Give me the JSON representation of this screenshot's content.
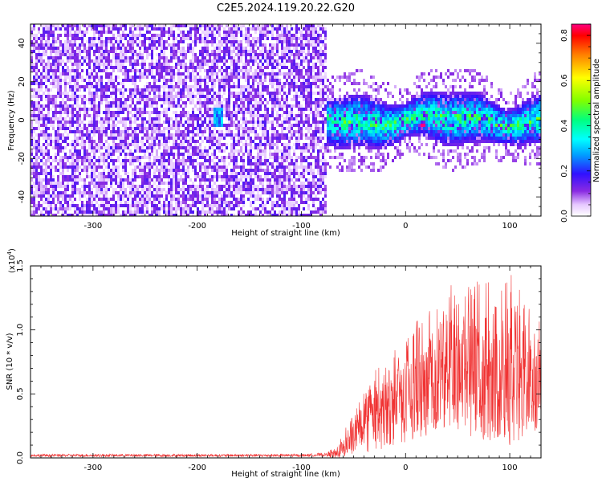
{
  "title": "C2E5.2024.119.20.22.G20",
  "chart_data": [
    {
      "type": "heatmap",
      "xlabel": "Height of straight line (km)",
      "ylabel": "Frequency (Hz)",
      "xlim": [
        -360,
        130
      ],
      "ylim": [
        -50,
        50
      ],
      "xticks": [
        -300,
        -200,
        -100,
        0,
        100
      ],
      "yticks": [
        -40,
        -20,
        0,
        20,
        40
      ],
      "colorbar": {
        "label": "Normalized spectral amplitude",
        "range": [
          0,
          0.85
        ],
        "ticks": [
          0.0,
          0.2,
          0.4,
          0.6,
          0.8
        ],
        "tick_labels": [
          "0.0",
          "0.2",
          "0.4",
          "0.6",
          "0.8"
        ]
      },
      "regions": [
        {
          "description": "broadband noise",
          "x": [
            -360,
            -75
          ],
          "freq": [
            -50,
            50
          ],
          "amplitude": 0.12
        },
        {
          "description": "narrow band signal",
          "x": [
            -75,
            130
          ],
          "freq": [
            -12,
            12
          ],
          "amplitude": 0.35
        },
        {
          "description": "small patch",
          "x": [
            -185,
            -175
          ],
          "freq": [
            -3,
            7
          ],
          "amplitude": 0.28
        },
        {
          "description": "peak",
          "x": [
            15,
            20
          ],
          "freq": [
            -4,
            -2
          ],
          "amplitude": 0.85
        }
      ]
    },
    {
      "type": "line",
      "xlabel": "Height of straight line (km)",
      "ylabel": "SNR (10 * v/v)",
      "y_multiplier": "(x10",
      "y_exponent": "4",
      "xlim": [
        -360,
        130
      ],
      "ylim": [
        0,
        1.5
      ],
      "xticks": [
        -300,
        -200,
        -100,
        0,
        100
      ],
      "yticks": [
        0.0,
        0.5,
        1.0,
        1.5
      ],
      "ytick_labels": [
        "0.0",
        "0.5",
        "1.0",
        "1.5"
      ],
      "color": "#f03232",
      "series_envelope": [
        {
          "x": -360,
          "low": 0.0,
          "high": 0.03
        },
        {
          "x": -100,
          "low": 0.0,
          "high": 0.03
        },
        {
          "x": -75,
          "low": 0.0,
          "high": 0.04
        },
        {
          "x": -65,
          "low": 0.0,
          "high": 0.12
        },
        {
          "x": -50,
          "low": 0.02,
          "high": 0.35
        },
        {
          "x": -30,
          "low": 0.05,
          "high": 0.7
        },
        {
          "x": -10,
          "low": 0.1,
          "high": 0.85
        },
        {
          "x": 10,
          "low": 0.15,
          "high": 1.1
        },
        {
          "x": 30,
          "low": 0.2,
          "high": 1.25
        },
        {
          "x": 50,
          "low": 0.2,
          "high": 1.4
        },
        {
          "x": 70,
          "low": 0.15,
          "high": 1.4
        },
        {
          "x": 90,
          "low": 0.1,
          "high": 1.35
        },
        {
          "x": 100,
          "low": 0.1,
          "high": 1.5
        },
        {
          "x": 115,
          "low": 0.15,
          "high": 1.2
        },
        {
          "x": 130,
          "low": 0.25,
          "high": 1.05
        }
      ]
    }
  ]
}
